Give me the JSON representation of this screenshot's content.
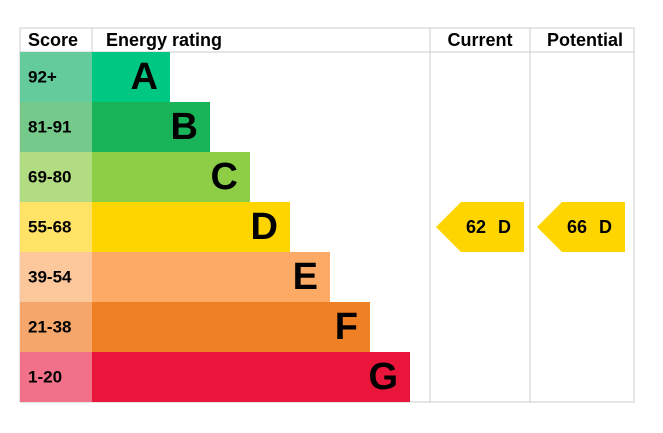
{
  "header": {
    "score": "Score",
    "rating": "Energy rating",
    "current": "Current",
    "potential": "Potential"
  },
  "bands": [
    {
      "score": "92+",
      "letter": "A",
      "color": "#00c781",
      "score_color": "#63cb9c"
    },
    {
      "score": "81-91",
      "letter": "B",
      "color": "#19b459",
      "score_color": "#74c98b"
    },
    {
      "score": "69-80",
      "letter": "C",
      "color": "#8dce46",
      "score_color": "#b2dc82"
    },
    {
      "score": "55-68",
      "letter": "D",
      "color": "#ffd500",
      "score_color": "#ffe366"
    },
    {
      "score": "39-54",
      "letter": "E",
      "color": "#fcaa65",
      "score_color": "#fdc79c"
    },
    {
      "score": "21-38",
      "letter": "F",
      "color": "#ef8023",
      "score_color": "#f5a66a"
    },
    {
      "score": "1-20",
      "letter": "G",
      "color": "#e9153b",
      "score_color": "#f07189"
    }
  ],
  "current": {
    "score": 62,
    "letter": "D"
  },
  "potential": {
    "score": 66,
    "letter": "D"
  }
}
